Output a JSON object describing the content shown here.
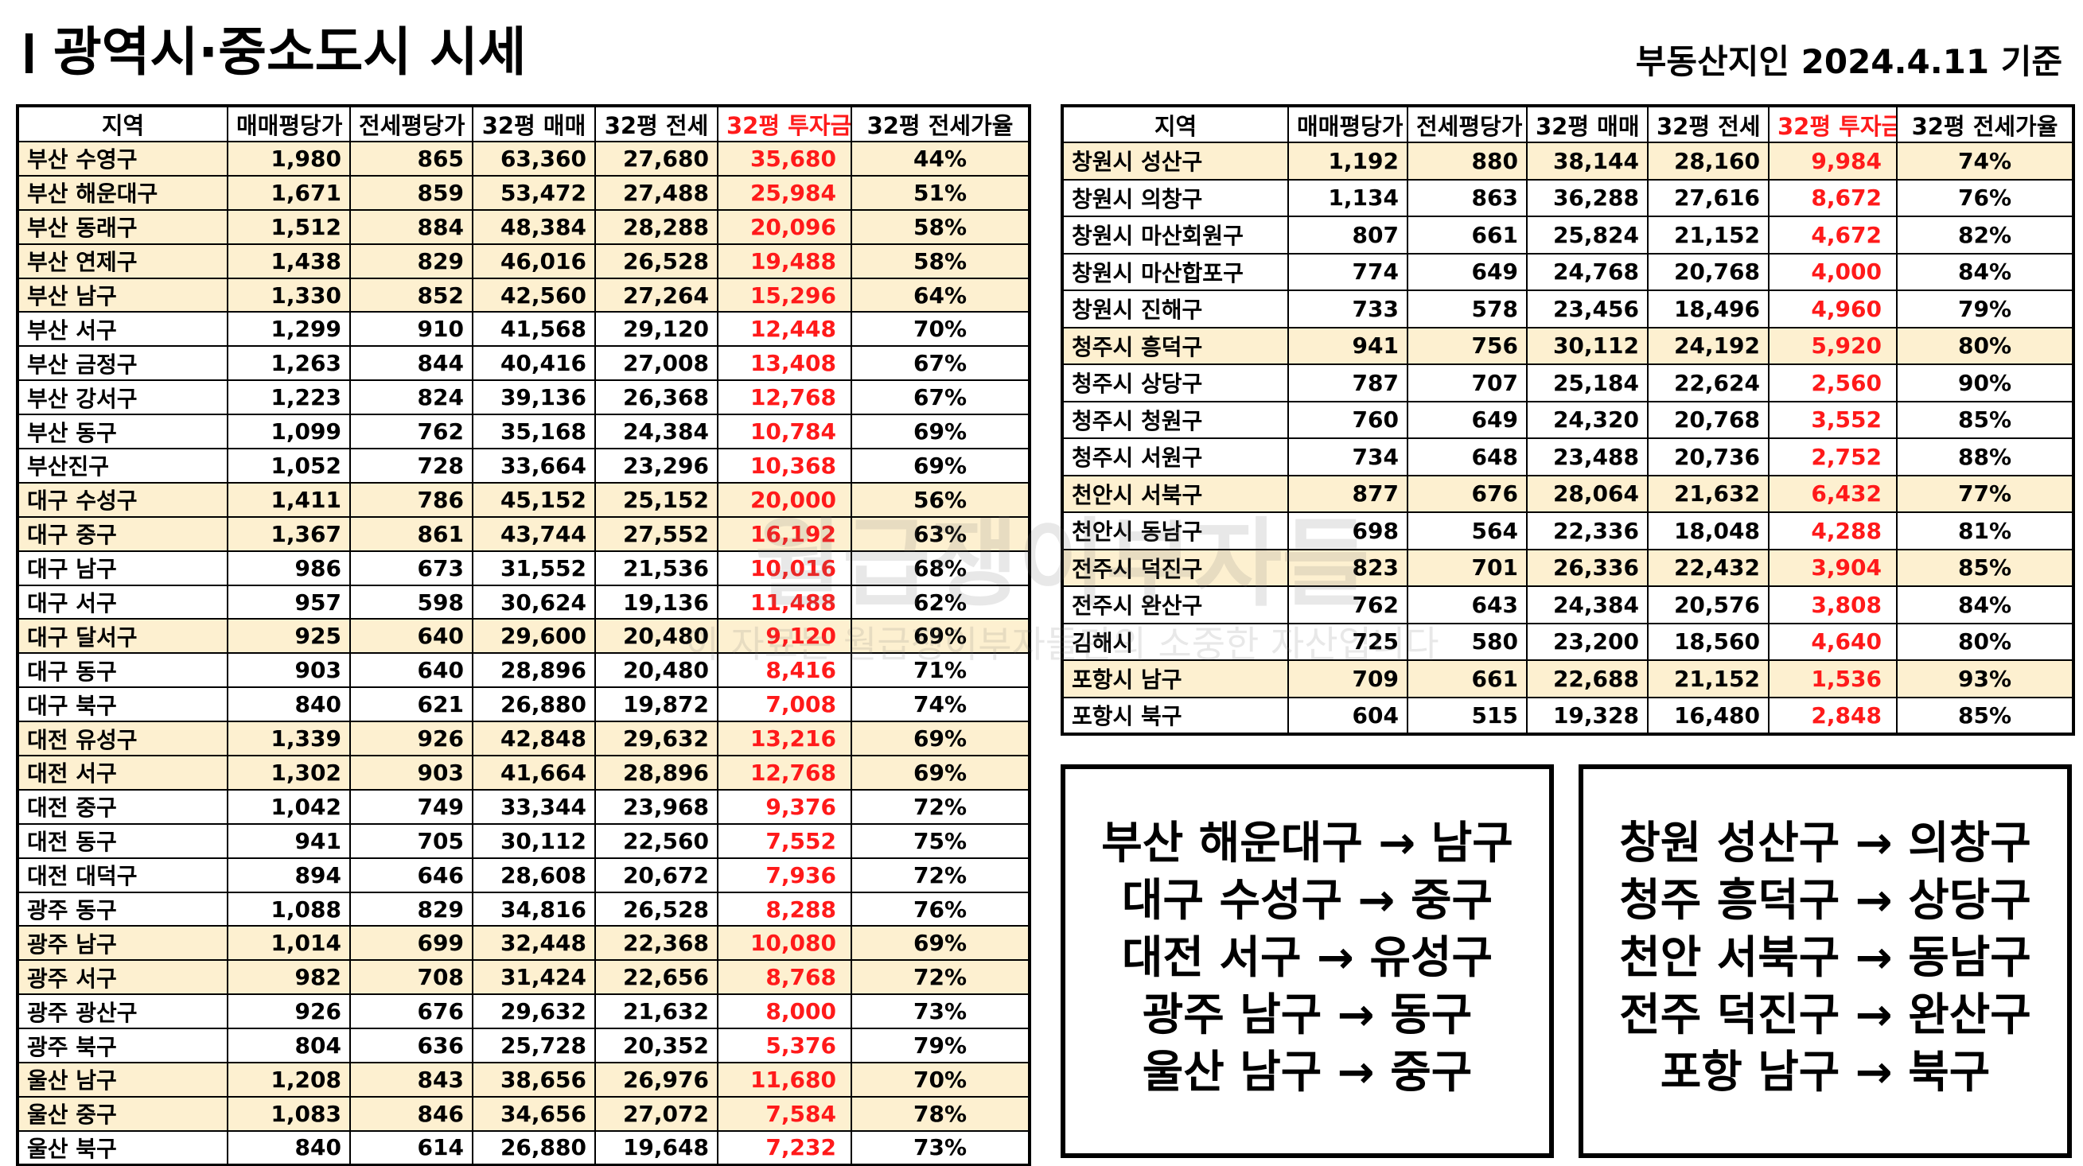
{
  "header": {
    "title": "광역시·중소도시 시세",
    "date": "부동산지인 2024.4.11 기준"
  },
  "columns": [
    "지역",
    "매매평당가",
    "전세평당가",
    "32평 매매",
    "32평 전세",
    "32평 투자금",
    "32평 전세가율"
  ],
  "left_table": {
    "rows": [
      {
        "region": "부산 수영구",
        "sale_pp": "1,980",
        "jeonse_pp": "865",
        "sale32": "63,360",
        "jeonse32": "27,680",
        "invest32": "35,680",
        "rate32": "44%",
        "hl": true
      },
      {
        "region": "부산 해운대구",
        "sale_pp": "1,671",
        "jeonse_pp": "859",
        "sale32": "53,472",
        "jeonse32": "27,488",
        "invest32": "25,984",
        "rate32": "51%",
        "hl": true
      },
      {
        "region": "부산 동래구",
        "sale_pp": "1,512",
        "jeonse_pp": "884",
        "sale32": "48,384",
        "jeonse32": "28,288",
        "invest32": "20,096",
        "rate32": "58%",
        "hl": true
      },
      {
        "region": "부산 연제구",
        "sale_pp": "1,438",
        "jeonse_pp": "829",
        "sale32": "46,016",
        "jeonse32": "26,528",
        "invest32": "19,488",
        "rate32": "58%",
        "hl": true
      },
      {
        "region": "부산 남구",
        "sale_pp": "1,330",
        "jeonse_pp": "852",
        "sale32": "42,560",
        "jeonse32": "27,264",
        "invest32": "15,296",
        "rate32": "64%",
        "hl": true
      },
      {
        "region": "부산 서구",
        "sale_pp": "1,299",
        "jeonse_pp": "910",
        "sale32": "41,568",
        "jeonse32": "29,120",
        "invest32": "12,448",
        "rate32": "70%",
        "hl": false
      },
      {
        "region": "부산 금정구",
        "sale_pp": "1,263",
        "jeonse_pp": "844",
        "sale32": "40,416",
        "jeonse32": "27,008",
        "invest32": "13,408",
        "rate32": "67%",
        "hl": false
      },
      {
        "region": "부산 강서구",
        "sale_pp": "1,223",
        "jeonse_pp": "824",
        "sale32": "39,136",
        "jeonse32": "26,368",
        "invest32": "12,768",
        "rate32": "67%",
        "hl": false
      },
      {
        "region": "부산 동구",
        "sale_pp": "1,099",
        "jeonse_pp": "762",
        "sale32": "35,168",
        "jeonse32": "24,384",
        "invest32": "10,784",
        "rate32": "69%",
        "hl": false
      },
      {
        "region": "부산진구",
        "sale_pp": "1,052",
        "jeonse_pp": "728",
        "sale32": "33,664",
        "jeonse32": "23,296",
        "invest32": "10,368",
        "rate32": "69%",
        "hl": false
      },
      {
        "region": "대구 수성구",
        "sale_pp": "1,411",
        "jeonse_pp": "786",
        "sale32": "45,152",
        "jeonse32": "25,152",
        "invest32": "20,000",
        "rate32": "56%",
        "hl": true
      },
      {
        "region": "대구 중구",
        "sale_pp": "1,367",
        "jeonse_pp": "861",
        "sale32": "43,744",
        "jeonse32": "27,552",
        "invest32": "16,192",
        "rate32": "63%",
        "hl": true
      },
      {
        "region": "대구 남구",
        "sale_pp": "986",
        "jeonse_pp": "673",
        "sale32": "31,552",
        "jeonse32": "21,536",
        "invest32": "10,016",
        "rate32": "68%",
        "hl": false
      },
      {
        "region": "대구 서구",
        "sale_pp": "957",
        "jeonse_pp": "598",
        "sale32": "30,624",
        "jeonse32": "19,136",
        "invest32": "11,488",
        "rate32": "62%",
        "hl": false
      },
      {
        "region": "대구 달서구",
        "sale_pp": "925",
        "jeonse_pp": "640",
        "sale32": "29,600",
        "jeonse32": "20,480",
        "invest32": "9,120",
        "rate32": "69%",
        "hl": true
      },
      {
        "region": "대구 동구",
        "sale_pp": "903",
        "jeonse_pp": "640",
        "sale32": "28,896",
        "jeonse32": "20,480",
        "invest32": "8,416",
        "rate32": "71%",
        "hl": false
      },
      {
        "region": "대구 북구",
        "sale_pp": "840",
        "jeonse_pp": "621",
        "sale32": "26,880",
        "jeonse32": "19,872",
        "invest32": "7,008",
        "rate32": "74%",
        "hl": false
      },
      {
        "region": "대전 유성구",
        "sale_pp": "1,339",
        "jeonse_pp": "926",
        "sale32": "42,848",
        "jeonse32": "29,632",
        "invest32": "13,216",
        "rate32": "69%",
        "hl": true
      },
      {
        "region": "대전 서구",
        "sale_pp": "1,302",
        "jeonse_pp": "903",
        "sale32": "41,664",
        "jeonse32": "28,896",
        "invest32": "12,768",
        "rate32": "69%",
        "hl": true
      },
      {
        "region": "대전 중구",
        "sale_pp": "1,042",
        "jeonse_pp": "749",
        "sale32": "33,344",
        "jeonse32": "23,968",
        "invest32": "9,376",
        "rate32": "72%",
        "hl": false
      },
      {
        "region": "대전 동구",
        "sale_pp": "941",
        "jeonse_pp": "705",
        "sale32": "30,112",
        "jeonse32": "22,560",
        "invest32": "7,552",
        "rate32": "75%",
        "hl": false
      },
      {
        "region": "대전 대덕구",
        "sale_pp": "894",
        "jeonse_pp": "646",
        "sale32": "28,608",
        "jeonse32": "20,672",
        "invest32": "7,936",
        "rate32": "72%",
        "hl": false
      },
      {
        "region": "광주 동구",
        "sale_pp": "1,088",
        "jeonse_pp": "829",
        "sale32": "34,816",
        "jeonse32": "26,528",
        "invest32": "8,288",
        "rate32": "76%",
        "hl": false
      },
      {
        "region": "광주 남구",
        "sale_pp": "1,014",
        "jeonse_pp": "699",
        "sale32": "32,448",
        "jeonse32": "22,368",
        "invest32": "10,080",
        "rate32": "69%",
        "hl": true
      },
      {
        "region": "광주 서구",
        "sale_pp": "982",
        "jeonse_pp": "708",
        "sale32": "31,424",
        "jeonse32": "22,656",
        "invest32": "8,768",
        "rate32": "72%",
        "hl": true
      },
      {
        "region": "광주 광산구",
        "sale_pp": "926",
        "jeonse_pp": "676",
        "sale32": "29,632",
        "jeonse32": "21,632",
        "invest32": "8,000",
        "rate32": "73%",
        "hl": false
      },
      {
        "region": "광주 북구",
        "sale_pp": "804",
        "jeonse_pp": "636",
        "sale32": "25,728",
        "jeonse32": "20,352",
        "invest32": "5,376",
        "rate32": "79%",
        "hl": false
      },
      {
        "region": "울산 남구",
        "sale_pp": "1,208",
        "jeonse_pp": "843",
        "sale32": "38,656",
        "jeonse32": "26,976",
        "invest32": "11,680",
        "rate32": "70%",
        "hl": true
      },
      {
        "region": "울산 중구",
        "sale_pp": "1,083",
        "jeonse_pp": "846",
        "sale32": "34,656",
        "jeonse32": "27,072",
        "invest32": "7,584",
        "rate32": "78%",
        "hl": true
      },
      {
        "region": "울산 북구",
        "sale_pp": "840",
        "jeonse_pp": "614",
        "sale32": "26,880",
        "jeonse32": "19,648",
        "invest32": "7,232",
        "rate32": "73%",
        "hl": false
      }
    ]
  },
  "right_table": {
    "rows": [
      {
        "region": "창원시 성산구",
        "sale_pp": "1,192",
        "jeonse_pp": "880",
        "sale32": "38,144",
        "jeonse32": "28,160",
        "invest32": "9,984",
        "rate32": "74%",
        "hl": true
      },
      {
        "region": "창원시 의창구",
        "sale_pp": "1,134",
        "jeonse_pp": "863",
        "sale32": "36,288",
        "jeonse32": "27,616",
        "invest32": "8,672",
        "rate32": "76%",
        "hl": false
      },
      {
        "region": "창원시 마산회원구",
        "sale_pp": "807",
        "jeonse_pp": "661",
        "sale32": "25,824",
        "jeonse32": "21,152",
        "invest32": "4,672",
        "rate32": "82%",
        "hl": false
      },
      {
        "region": "창원시 마산합포구",
        "sale_pp": "774",
        "jeonse_pp": "649",
        "sale32": "24,768",
        "jeonse32": "20,768",
        "invest32": "4,000",
        "rate32": "84%",
        "hl": false
      },
      {
        "region": "창원시 진해구",
        "sale_pp": "733",
        "jeonse_pp": "578",
        "sale32": "23,456",
        "jeonse32": "18,496",
        "invest32": "4,960",
        "rate32": "79%",
        "hl": false
      },
      {
        "region": "청주시 흥덕구",
        "sale_pp": "941",
        "jeonse_pp": "756",
        "sale32": "30,112",
        "jeonse32": "24,192",
        "invest32": "5,920",
        "rate32": "80%",
        "hl": true
      },
      {
        "region": "청주시 상당구",
        "sale_pp": "787",
        "jeonse_pp": "707",
        "sale32": "25,184",
        "jeonse32": "22,624",
        "invest32": "2,560",
        "rate32": "90%",
        "hl": false
      },
      {
        "region": "청주시 청원구",
        "sale_pp": "760",
        "jeonse_pp": "649",
        "sale32": "24,320",
        "jeonse32": "20,768",
        "invest32": "3,552",
        "rate32": "85%",
        "hl": false
      },
      {
        "region": "청주시 서원구",
        "sale_pp": "734",
        "jeonse_pp": "648",
        "sale32": "23,488",
        "jeonse32": "20,736",
        "invest32": "2,752",
        "rate32": "88%",
        "hl": false
      },
      {
        "region": "천안시 서북구",
        "sale_pp": "877",
        "jeonse_pp": "676",
        "sale32": "28,064",
        "jeonse32": "21,632",
        "invest32": "6,432",
        "rate32": "77%",
        "hl": true
      },
      {
        "region": "천안시 동남구",
        "sale_pp": "698",
        "jeonse_pp": "564",
        "sale32": "22,336",
        "jeonse32": "18,048",
        "invest32": "4,288",
        "rate32": "81%",
        "hl": false
      },
      {
        "region": "전주시 덕진구",
        "sale_pp": "823",
        "jeonse_pp": "701",
        "sale32": "26,336",
        "jeonse32": "22,432",
        "invest32": "3,904",
        "rate32": "85%",
        "hl": true
      },
      {
        "region": "전주시 완산구",
        "sale_pp": "762",
        "jeonse_pp": "643",
        "sale32": "24,384",
        "jeonse32": "20,576",
        "invest32": "3,808",
        "rate32": "84%",
        "hl": false
      },
      {
        "region": "김해시",
        "sale_pp": "725",
        "jeonse_pp": "580",
        "sale32": "23,200",
        "jeonse32": "18,560",
        "invest32": "4,640",
        "rate32": "80%",
        "hl": false
      },
      {
        "region": "포항시 남구",
        "sale_pp": "709",
        "jeonse_pp": "661",
        "sale32": "22,688",
        "jeonse32": "21,152",
        "invest32": "1,536",
        "rate32": "93%",
        "hl": true
      },
      {
        "region": "포항시 북구",
        "sale_pp": "604",
        "jeonse_pp": "515",
        "sale32": "19,328",
        "jeonse32": "16,480",
        "invest32": "2,848",
        "rate32": "85%",
        "hl": false
      }
    ]
  },
  "summary_left": [
    "부산 해운대구 → 남구",
    "대구 수성구 → 중구",
    "대전 서구 → 유성구",
    "광주 남구 → 동구",
    "울산 남구 → 중구"
  ],
  "summary_right": [
    "창원 성산구 → 의창구",
    "청주 흥덕구 → 상당구",
    "천안 서북구 → 동남구",
    "전주 덕진구 → 완산구",
    "포항 남구 → 북구"
  ],
  "watermark": {
    "main": "월급쟁이부자들",
    "sub": "이 자료는 월급쟁이부자들만의 소중한 자산입니다"
  },
  "colors": {
    "highlight_row": "#fdf0d0",
    "investment_text": "#ff1a1a"
  }
}
